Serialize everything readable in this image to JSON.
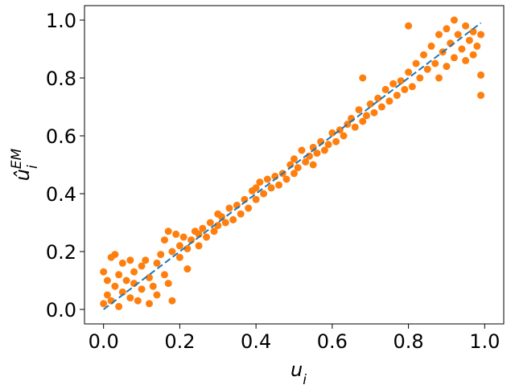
{
  "chart_data": {
    "type": "scatter",
    "xlabel": {
      "text": "u",
      "sub": "i"
    },
    "ylabel": {
      "text": "û",
      "sub": "i",
      "sup": "EM"
    },
    "xlim": [
      -0.05,
      1.05
    ],
    "ylim": [
      -0.05,
      1.05
    ],
    "xticks": [
      {
        "value": 0,
        "label": "0.0"
      },
      0.2,
      0.4,
      0.6,
      0.8,
      {
        "value": 1,
        "label": "1.0"
      }
    ],
    "yticks": [
      {
        "value": 0,
        "label": "0.0"
      },
      0.2,
      0.4,
      0.6,
      0.8,
      {
        "value": 1,
        "label": "1.0"
      }
    ],
    "series": [
      {
        "type": "scatter",
        "color": "#ff7f0e",
        "x": [
          0.0,
          0.0,
          0.01,
          0.01,
          0.02,
          0.02,
          0.03,
          0.03,
          0.04,
          0.04,
          0.05,
          0.05,
          0.06,
          0.07,
          0.07,
          0.08,
          0.08,
          0.09,
          0.1,
          0.1,
          0.11,
          0.12,
          0.12,
          0.13,
          0.14,
          0.14,
          0.15,
          0.16,
          0.16,
          0.17,
          0.17,
          0.18,
          0.18,
          0.19,
          0.2,
          0.2,
          0.21,
          0.22,
          0.22,
          0.23,
          0.24,
          0.25,
          0.25,
          0.26,
          0.27,
          0.28,
          0.29,
          0.3,
          0.3,
          0.31,
          0.32,
          0.33,
          0.34,
          0.35,
          0.36,
          0.37,
          0.38,
          0.39,
          0.4,
          0.4,
          0.41,
          0.42,
          0.43,
          0.44,
          0.45,
          0.46,
          0.47,
          0.48,
          0.49,
          0.5,
          0.5,
          0.51,
          0.52,
          0.53,
          0.54,
          0.55,
          0.55,
          0.56,
          0.57,
          0.58,
          0.59,
          0.6,
          0.61,
          0.62,
          0.63,
          0.64,
          0.65,
          0.66,
          0.67,
          0.68,
          0.68,
          0.69,
          0.7,
          0.71,
          0.72,
          0.73,
          0.74,
          0.75,
          0.76,
          0.77,
          0.78,
          0.79,
          0.8,
          0.8,
          0.81,
          0.82,
          0.83,
          0.84,
          0.85,
          0.86,
          0.87,
          0.88,
          0.88,
          0.89,
          0.9,
          0.9,
          0.91,
          0.92,
          0.92,
          0.93,
          0.94,
          0.95,
          0.95,
          0.96,
          0.97,
          0.97,
          0.98,
          0.99,
          0.99,
          0.99
        ],
        "values": [
          0.02,
          0.13,
          0.1,
          0.05,
          0.18,
          0.03,
          0.08,
          0.19,
          0.12,
          0.01,
          0.06,
          0.16,
          0.1,
          0.04,
          0.17,
          0.09,
          0.13,
          0.03,
          0.15,
          0.07,
          0.17,
          0.02,
          0.11,
          0.08,
          0.16,
          0.05,
          0.19,
          0.12,
          0.24,
          0.09,
          0.27,
          0.03,
          0.2,
          0.26,
          0.18,
          0.22,
          0.25,
          0.14,
          0.21,
          0.24,
          0.27,
          0.22,
          0.26,
          0.28,
          0.25,
          0.3,
          0.27,
          0.33,
          0.29,
          0.32,
          0.3,
          0.35,
          0.31,
          0.36,
          0.33,
          0.38,
          0.35,
          0.41,
          0.38,
          0.42,
          0.44,
          0.4,
          0.45,
          0.42,
          0.46,
          0.43,
          0.47,
          0.45,
          0.5,
          0.47,
          0.52,
          0.49,
          0.55,
          0.51,
          0.53,
          0.5,
          0.56,
          0.54,
          0.58,
          0.55,
          0.57,
          0.61,
          0.58,
          0.62,
          0.6,
          0.64,
          0.66,
          0.63,
          0.69,
          0.65,
          0.8,
          0.67,
          0.71,
          0.68,
          0.73,
          0.7,
          0.76,
          0.72,
          0.78,
          0.74,
          0.79,
          0.76,
          0.82,
          0.98,
          0.77,
          0.85,
          0.8,
          0.88,
          0.83,
          0.91,
          0.85,
          0.95,
          0.8,
          0.89,
          0.97,
          0.84,
          0.92,
          1.0,
          0.87,
          0.95,
          0.9,
          0.98,
          0.86,
          0.93,
          0.96,
          0.88,
          0.91,
          0.74,
          0.81,
          0.95
        ]
      },
      {
        "type": "line",
        "color": "#1f77b4",
        "dashed": true,
        "x": [
          0,
          0.99
        ],
        "values": [
          0,
          0.99
        ]
      }
    ]
  }
}
